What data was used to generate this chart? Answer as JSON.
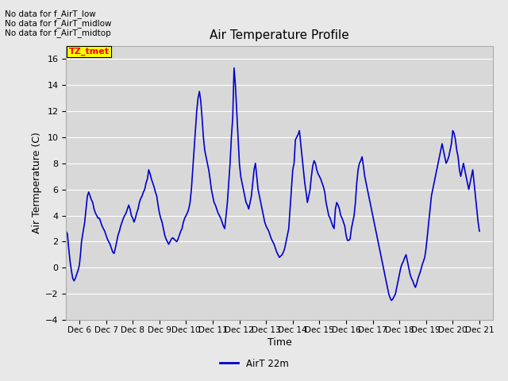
{
  "title": "Air Temperature Profile",
  "xlabel": "Time",
  "ylabel": "Air Termperature (C)",
  "xlim_days": [
    5.5,
    21.5
  ],
  "ylim": [
    -4,
    17
  ],
  "yticks": [
    -4,
    -2,
    0,
    2,
    4,
    6,
    8,
    10,
    12,
    14,
    16
  ],
  "xtick_labels": [
    "Dec 6",
    "Dec 7",
    "Dec 8",
    "Dec 9",
    "Dec 10",
    "Dec 11",
    "Dec 12",
    "Dec 13",
    "Dec 14",
    "Dec 15",
    "Dec 16",
    "Dec 17",
    "Dec 18",
    "Dec 19",
    "Dec 20",
    "Dec 21"
  ],
  "xtick_positions": [
    6,
    7,
    8,
    9,
    10,
    11,
    12,
    13,
    14,
    15,
    16,
    17,
    18,
    19,
    20,
    21
  ],
  "line_color": "#0000cc",
  "line_width": 1.2,
  "background_color": "#e8e8e8",
  "plot_bg_color": "#d8d8d8",
  "grid_color": "#ffffff",
  "legend_label": "AirT 22m",
  "no_data_texts": [
    "No data for f_AirT_low",
    "No data for f_AirT_midlow",
    "No data for f_AirT_midtop"
  ],
  "tz_label": "TZ_tmet",
  "time_data": [
    5.5,
    5.55,
    5.6,
    5.65,
    5.7,
    5.75,
    5.8,
    5.85,
    5.9,
    5.95,
    6.0,
    6.04,
    6.08,
    6.12,
    6.16,
    6.2,
    6.25,
    6.3,
    6.35,
    6.4,
    6.45,
    6.5,
    6.55,
    6.6,
    6.65,
    6.7,
    6.75,
    6.8,
    6.85,
    6.9,
    6.95,
    7.0,
    7.05,
    7.1,
    7.15,
    7.2,
    7.25,
    7.3,
    7.35,
    7.4,
    7.45,
    7.5,
    7.55,
    7.6,
    7.65,
    7.7,
    7.75,
    7.8,
    7.85,
    7.9,
    7.95,
    8.0,
    8.05,
    8.1,
    8.15,
    8.2,
    8.25,
    8.3,
    8.35,
    8.4,
    8.45,
    8.5,
    8.55,
    8.6,
    8.65,
    8.7,
    8.75,
    8.8,
    8.85,
    8.9,
    8.95,
    9.0,
    9.05,
    9.1,
    9.15,
    9.2,
    9.25,
    9.3,
    9.35,
    9.4,
    9.45,
    9.5,
    9.55,
    9.6,
    9.65,
    9.7,
    9.75,
    9.8,
    9.85,
    9.9,
    9.95,
    10.0,
    10.05,
    10.1,
    10.15,
    10.2,
    10.25,
    10.3,
    10.35,
    10.4,
    10.45,
    10.5,
    10.55,
    10.6,
    10.65,
    10.7,
    10.75,
    10.8,
    10.85,
    10.9,
    10.95,
    11.0,
    11.05,
    11.1,
    11.15,
    11.2,
    11.25,
    11.3,
    11.35,
    11.4,
    11.45,
    11.5,
    11.55,
    11.6,
    11.65,
    11.7,
    11.75,
    11.8,
    11.85,
    11.9,
    11.95,
    12.0,
    12.05,
    12.1,
    12.15,
    12.2,
    12.25,
    12.3,
    12.35,
    12.4,
    12.45,
    12.5,
    12.55,
    12.6,
    12.65,
    12.7,
    12.75,
    12.8,
    12.85,
    12.9,
    12.95,
    13.0,
    13.05,
    13.1,
    13.15,
    13.2,
    13.25,
    13.3,
    13.35,
    13.4,
    13.45,
    13.5,
    13.55,
    13.6,
    13.65,
    13.7,
    13.75,
    13.8,
    13.85,
    13.9,
    13.95,
    14.0,
    14.05,
    14.1,
    14.15,
    14.2,
    14.25,
    14.3,
    14.35,
    14.4,
    14.45,
    14.5,
    14.55,
    14.6,
    14.65,
    14.7,
    14.75,
    14.8,
    14.85,
    14.9,
    14.95,
    15.0,
    15.05,
    15.1,
    15.15,
    15.2,
    15.25,
    15.3,
    15.35,
    15.4,
    15.45,
    15.5,
    15.55,
    15.6,
    15.65,
    15.7,
    15.75,
    15.8,
    15.85,
    15.9,
    15.95,
    16.0,
    16.05,
    16.1,
    16.15,
    16.2,
    16.25,
    16.3,
    16.35,
    16.4,
    16.45,
    16.5,
    16.55,
    16.6,
    16.65,
    16.7,
    16.75,
    16.8,
    16.85,
    16.9,
    16.95,
    17.0,
    17.05,
    17.1,
    17.15,
    17.2,
    17.25,
    17.3,
    17.35,
    17.4,
    17.45,
    17.5,
    17.55,
    17.6,
    17.65,
    17.7,
    17.75,
    17.8,
    17.85,
    17.9,
    17.95,
    18.0,
    18.05,
    18.1,
    18.15,
    18.2,
    18.25,
    18.3,
    18.35,
    18.4,
    18.45,
    18.5,
    18.55,
    18.6,
    18.65,
    18.7,
    18.75,
    18.8,
    18.85,
    18.9,
    18.95,
    19.0,
    19.05,
    19.1,
    19.15,
    19.2,
    19.25,
    19.3,
    19.35,
    19.4,
    19.45,
    19.5,
    19.55,
    19.6,
    19.65,
    19.7,
    19.75,
    19.8,
    19.85,
    19.9,
    19.95,
    20.0,
    20.05,
    20.1,
    20.15,
    20.2,
    20.25,
    20.3,
    20.35,
    20.4,
    20.45,
    20.5,
    20.55,
    20.6,
    20.65,
    20.7,
    20.75,
    20.8,
    20.85,
    20.9,
    20.95,
    21.0
  ],
  "temp_data": [
    2.8,
    2.6,
    1.5,
    0.5,
    -0.2,
    -0.8,
    -1.0,
    -0.8,
    -0.5,
    -0.2,
    0.2,
    1.0,
    2.0,
    2.5,
    3.0,
    3.5,
    4.5,
    5.5,
    5.8,
    5.5,
    5.2,
    5.0,
    4.5,
    4.2,
    4.0,
    3.8,
    3.8,
    3.5,
    3.2,
    3.0,
    2.8,
    2.5,
    2.2,
    2.0,
    1.8,
    1.5,
    1.2,
    1.1,
    1.5,
    2.0,
    2.5,
    2.8,
    3.2,
    3.5,
    3.8,
    4.0,
    4.2,
    4.5,
    4.8,
    4.5,
    4.0,
    3.8,
    3.5,
    3.8,
    4.2,
    4.5,
    5.0,
    5.3,
    5.5,
    5.8,
    6.0,
    6.5,
    6.8,
    7.5,
    7.2,
    6.8,
    6.5,
    6.2,
    5.8,
    5.5,
    4.8,
    4.2,
    3.8,
    3.5,
    3.0,
    2.5,
    2.2,
    2.0,
    1.8,
    2.0,
    2.2,
    2.3,
    2.2,
    2.1,
    2.0,
    2.2,
    2.5,
    2.8,
    3.0,
    3.5,
    3.8,
    4.0,
    4.2,
    4.5,
    5.0,
    6.0,
    7.5,
    9.0,
    10.5,
    12.0,
    13.0,
    13.5,
    12.8,
    11.5,
    10.0,
    9.0,
    8.5,
    8.0,
    7.5,
    6.8,
    6.0,
    5.5,
    5.0,
    4.8,
    4.5,
    4.2,
    4.0,
    3.8,
    3.5,
    3.2,
    3.0,
    4.0,
    5.0,
    6.5,
    8.0,
    10.0,
    11.5,
    15.3,
    14.0,
    12.0,
    10.0,
    8.0,
    7.0,
    6.5,
    6.0,
    5.5,
    5.0,
    4.8,
    4.5,
    5.0,
    5.5,
    6.5,
    7.5,
    8.0,
    7.0,
    6.0,
    5.5,
    5.0,
    4.5,
    4.0,
    3.5,
    3.2,
    3.0,
    2.8,
    2.5,
    2.2,
    2.0,
    1.8,
    1.5,
    1.2,
    1.0,
    0.8,
    0.9,
    1.0,
    1.2,
    1.5,
    2.0,
    2.5,
    3.0,
    4.5,
    6.0,
    7.5,
    8.0,
    9.8,
    10.0,
    10.2,
    10.5,
    9.5,
    8.5,
    7.5,
    6.5,
    5.8,
    5.0,
    5.5,
    6.0,
    7.0,
    7.8,
    8.2,
    8.0,
    7.5,
    7.2,
    7.0,
    6.8,
    6.5,
    6.2,
    5.8,
    5.0,
    4.5,
    4.0,
    3.8,
    3.5,
    3.2,
    3.0,
    4.5,
    5.0,
    4.8,
    4.5,
    4.0,
    3.8,
    3.5,
    3.2,
    2.5,
    2.1,
    2.1,
    2.2,
    3.0,
    3.5,
    4.0,
    5.0,
    6.5,
    7.5,
    8.0,
    8.2,
    8.5,
    7.8,
    7.0,
    6.5,
    6.0,
    5.5,
    5.0,
    4.5,
    4.0,
    3.5,
    3.0,
    2.5,
    2.0,
    1.5,
    1.0,
    0.5,
    0.0,
    -0.5,
    -1.0,
    -1.5,
    -2.0,
    -2.3,
    -2.5,
    -2.4,
    -2.2,
    -2.0,
    -1.5,
    -1.0,
    -0.5,
    0.0,
    0.3,
    0.5,
    0.8,
    1.0,
    0.5,
    0.0,
    -0.5,
    -0.8,
    -1.0,
    -1.3,
    -1.5,
    -1.2,
    -0.8,
    -0.5,
    -0.2,
    0.2,
    0.5,
    0.8,
    1.5,
    2.5,
    3.5,
    4.5,
    5.5,
    6.0,
    6.5,
    7.0,
    7.5,
    8.0,
    8.5,
    9.0,
    9.5,
    9.0,
    8.5,
    8.0,
    8.2,
    8.5,
    9.0,
    9.5,
    10.5,
    10.3,
    9.8,
    9.0,
    8.5,
    7.5,
    7.0,
    7.5,
    8.0,
    7.5,
    7.0,
    6.5,
    6.0,
    6.5,
    7.0,
    7.5,
    6.5,
    5.5,
    4.5,
    3.5,
    2.8
  ]
}
